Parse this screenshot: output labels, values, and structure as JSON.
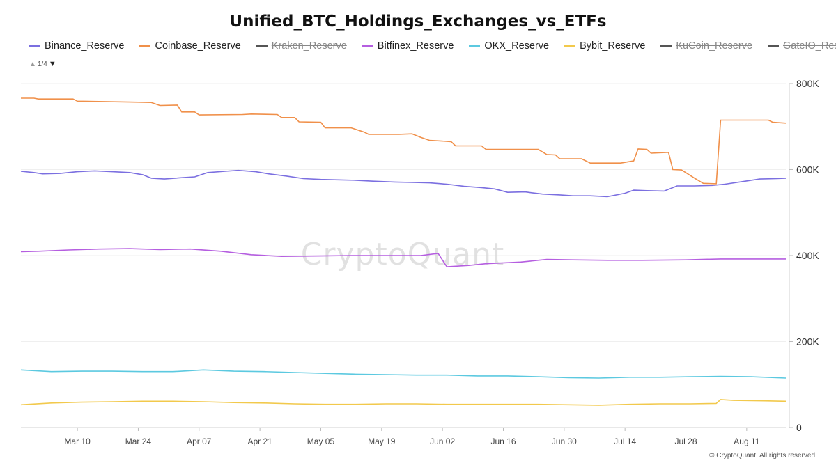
{
  "title": "Unified_BTC_Holdings_Exchanges_vs_ETFs",
  "legend_page": "1/4",
  "watermark": "CryptoQuant",
  "copyright": "© CryptoQuant. All rights reserved",
  "chart_data": {
    "type": "line",
    "title": "Unified_BTC_Holdings_Exchanges_vs_ETFs",
    "xlabel": "",
    "ylabel": "",
    "x_start": "2025-02-25",
    "x_end": "2025-08-20",
    "x_ticks": [
      {
        "date": "2025-03-10",
        "label": "Mar 10"
      },
      {
        "date": "2025-03-24",
        "label": "Mar 24"
      },
      {
        "date": "2025-04-07",
        "label": "Apr 07"
      },
      {
        "date": "2025-04-21",
        "label": "Apr 21"
      },
      {
        "date": "2025-05-05",
        "label": "May 05"
      },
      {
        "date": "2025-05-19",
        "label": "May 19"
      },
      {
        "date": "2025-06-02",
        "label": "Jun 02"
      },
      {
        "date": "2025-06-16",
        "label": "Jun 16"
      },
      {
        "date": "2025-06-30",
        "label": "Jun 30"
      },
      {
        "date": "2025-07-14",
        "label": "Jul 14"
      },
      {
        "date": "2025-07-28",
        "label": "Jul 28"
      },
      {
        "date": "2025-08-11",
        "label": "Aug 11"
      }
    ],
    "ylim": [
      0,
      800000
    ],
    "y_ticks": [
      {
        "value": 0,
        "label": "0"
      },
      {
        "value": 200000,
        "label": "200K"
      },
      {
        "value": 400000,
        "label": "400K"
      },
      {
        "value": 600000,
        "label": "600K"
      },
      {
        "value": 800000,
        "label": "800K"
      }
    ],
    "y_axis_side": "right",
    "grid": true,
    "legend_position": "top-left",
    "series": [
      {
        "name": "Binance_Reserve",
        "color": "#7b6fe0",
        "visible": true,
        "points": [
          [
            "2025-02-25",
            596000
          ],
          [
            "2025-02-28",
            593000
          ],
          [
            "2025-03-02",
            590000
          ],
          [
            "2025-03-06",
            591000
          ],
          [
            "2025-03-10",
            595000
          ],
          [
            "2025-03-14",
            597000
          ],
          [
            "2025-03-18",
            595000
          ],
          [
            "2025-03-22",
            593000
          ],
          [
            "2025-03-25",
            588000
          ],
          [
            "2025-03-27",
            580000
          ],
          [
            "2025-03-30",
            578000
          ],
          [
            "2025-04-03",
            581000
          ],
          [
            "2025-04-06",
            583000
          ],
          [
            "2025-04-09",
            593000
          ],
          [
            "2025-04-13",
            596000
          ],
          [
            "2025-04-16",
            598000
          ],
          [
            "2025-04-20",
            595000
          ],
          [
            "2025-04-23",
            590000
          ],
          [
            "2025-04-27",
            585000
          ],
          [
            "2025-05-01",
            579000
          ],
          [
            "2025-05-05",
            577000
          ],
          [
            "2025-05-09",
            576000
          ],
          [
            "2025-05-13",
            575000
          ],
          [
            "2025-05-17",
            573000
          ],
          [
            "2025-05-22",
            571000
          ],
          [
            "2025-05-26",
            570000
          ],
          [
            "2025-05-30",
            569000
          ],
          [
            "2025-06-03",
            566000
          ],
          [
            "2025-06-07",
            561000
          ],
          [
            "2025-06-11",
            558000
          ],
          [
            "2025-06-14",
            555000
          ],
          [
            "2025-06-17",
            547000
          ],
          [
            "2025-06-21",
            548000
          ],
          [
            "2025-06-25",
            543000
          ],
          [
            "2025-06-29",
            541000
          ],
          [
            "2025-07-02",
            539000
          ],
          [
            "2025-07-06",
            539000
          ],
          [
            "2025-07-10",
            537000
          ],
          [
            "2025-07-14",
            545000
          ],
          [
            "2025-07-16",
            552000
          ],
          [
            "2025-07-19",
            551000
          ],
          [
            "2025-07-23",
            550000
          ],
          [
            "2025-07-26",
            562000
          ],
          [
            "2025-07-30",
            562000
          ],
          [
            "2025-08-03",
            563000
          ],
          [
            "2025-08-06",
            566000
          ],
          [
            "2025-08-10",
            572000
          ],
          [
            "2025-08-14",
            578000
          ],
          [
            "2025-08-18",
            579000
          ],
          [
            "2025-08-20",
            580000
          ]
        ]
      },
      {
        "name": "Coinbase_Reserve",
        "color": "#f0904a",
        "visible": true,
        "points": [
          [
            "2025-02-25",
            766000
          ],
          [
            "2025-02-28",
            766000
          ],
          [
            "2025-03-01",
            764000
          ],
          [
            "2025-03-09",
            764000
          ],
          [
            "2025-03-10",
            759000
          ],
          [
            "2025-03-22",
            757000
          ],
          [
            "2025-03-27",
            756000
          ],
          [
            "2025-03-29",
            749000
          ],
          [
            "2025-04-02",
            750000
          ],
          [
            "2025-04-03",
            734000
          ],
          [
            "2025-04-06",
            734000
          ],
          [
            "2025-04-07",
            727000
          ],
          [
            "2025-04-17",
            728000
          ],
          [
            "2025-04-19",
            729000
          ],
          [
            "2025-04-25",
            728000
          ],
          [
            "2025-04-26",
            721000
          ],
          [
            "2025-04-29",
            721000
          ],
          [
            "2025-04-30",
            711000
          ],
          [
            "2025-05-05",
            710000
          ],
          [
            "2025-05-06",
            697000
          ],
          [
            "2025-05-12",
            697000
          ],
          [
            "2025-05-15",
            687000
          ],
          [
            "2025-05-16",
            682000
          ],
          [
            "2025-05-23",
            682000
          ],
          [
            "2025-05-26",
            683000
          ],
          [
            "2025-05-28",
            675000
          ],
          [
            "2025-05-30",
            668000
          ],
          [
            "2025-06-04",
            665000
          ],
          [
            "2025-06-05",
            655000
          ],
          [
            "2025-06-11",
            655000
          ],
          [
            "2025-06-12",
            647000
          ],
          [
            "2025-06-24",
            647000
          ],
          [
            "2025-06-26",
            635000
          ],
          [
            "2025-06-28",
            634000
          ],
          [
            "2025-06-29",
            625000
          ],
          [
            "2025-07-04",
            625000
          ],
          [
            "2025-07-06",
            615000
          ],
          [
            "2025-07-13",
            615000
          ],
          [
            "2025-07-16",
            620000
          ],
          [
            "2025-07-17",
            648000
          ],
          [
            "2025-07-19",
            647000
          ],
          [
            "2025-07-20",
            638000
          ],
          [
            "2025-07-24",
            640000
          ],
          [
            "2025-07-25",
            600000
          ],
          [
            "2025-07-27",
            599000
          ],
          [
            "2025-07-30",
            580000
          ],
          [
            "2025-08-01",
            568000
          ],
          [
            "2025-08-04",
            567000
          ],
          [
            "2025-08-05",
            715000
          ],
          [
            "2025-08-16",
            715000
          ],
          [
            "2025-08-17",
            710000
          ],
          [
            "2025-08-20",
            708000
          ]
        ]
      },
      {
        "name": "Kraken_Reserve",
        "color": "#555555",
        "visible": false,
        "points": []
      },
      {
        "name": "Bitfinex_Reserve",
        "color": "#b55ee0",
        "visible": true,
        "points": [
          [
            "2025-02-25",
            409000
          ],
          [
            "2025-03-01",
            410000
          ],
          [
            "2025-03-08",
            413000
          ],
          [
            "2025-03-15",
            415000
          ],
          [
            "2025-03-22",
            416000
          ],
          [
            "2025-03-29",
            414000
          ],
          [
            "2025-04-05",
            415000
          ],
          [
            "2025-04-12",
            410000
          ],
          [
            "2025-04-19",
            402000
          ],
          [
            "2025-04-26",
            398000
          ],
          [
            "2025-05-05",
            399000
          ],
          [
            "2025-05-12",
            400000
          ],
          [
            "2025-05-20",
            400000
          ],
          [
            "2025-05-28",
            400000
          ],
          [
            "2025-06-01",
            405000
          ],
          [
            "2025-06-03",
            374000
          ],
          [
            "2025-06-08",
            377000
          ],
          [
            "2025-06-12",
            381000
          ],
          [
            "2025-06-20",
            385000
          ],
          [
            "2025-06-26",
            391000
          ],
          [
            "2025-07-02",
            390000
          ],
          [
            "2025-07-10",
            389000
          ],
          [
            "2025-07-18",
            389000
          ],
          [
            "2025-07-28",
            390000
          ],
          [
            "2025-08-05",
            392000
          ],
          [
            "2025-08-12",
            392000
          ],
          [
            "2025-08-20",
            392000
          ]
        ]
      },
      {
        "name": "OKX_Reserve",
        "color": "#5cc9e0",
        "visible": true,
        "points": [
          [
            "2025-02-25",
            134000
          ],
          [
            "2025-03-04",
            130000
          ],
          [
            "2025-03-11",
            131000
          ],
          [
            "2025-03-18",
            131000
          ],
          [
            "2025-03-25",
            130000
          ],
          [
            "2025-04-01",
            130000
          ],
          [
            "2025-04-08",
            134000
          ],
          [
            "2025-04-15",
            131000
          ],
          [
            "2025-04-22",
            130000
          ],
          [
            "2025-04-29",
            128000
          ],
          [
            "2025-05-06",
            126000
          ],
          [
            "2025-05-13",
            124000
          ],
          [
            "2025-05-20",
            123000
          ],
          [
            "2025-05-27",
            122000
          ],
          [
            "2025-06-03",
            122000
          ],
          [
            "2025-06-10",
            120000
          ],
          [
            "2025-06-17",
            120000
          ],
          [
            "2025-06-24",
            118000
          ],
          [
            "2025-07-01",
            116000
          ],
          [
            "2025-07-08",
            115000
          ],
          [
            "2025-07-15",
            117000
          ],
          [
            "2025-07-22",
            117000
          ],
          [
            "2025-07-29",
            118000
          ],
          [
            "2025-08-05",
            119000
          ],
          [
            "2025-08-12",
            118000
          ],
          [
            "2025-08-20",
            115000
          ]
        ]
      },
      {
        "name": "Bybit_Reserve",
        "color": "#f2c94c",
        "visible": true,
        "points": [
          [
            "2025-02-25",
            53000
          ],
          [
            "2025-03-04",
            57000
          ],
          [
            "2025-03-11",
            59000
          ],
          [
            "2025-03-18",
            60000
          ],
          [
            "2025-03-25",
            61000
          ],
          [
            "2025-04-01",
            61000
          ],
          [
            "2025-04-08",
            60000
          ],
          [
            "2025-04-15",
            58000
          ],
          [
            "2025-04-22",
            57000
          ],
          [
            "2025-04-29",
            55000
          ],
          [
            "2025-05-06",
            54000
          ],
          [
            "2025-05-13",
            54000
          ],
          [
            "2025-05-20",
            55000
          ],
          [
            "2025-05-27",
            55000
          ],
          [
            "2025-06-03",
            54000
          ],
          [
            "2025-06-10",
            54000
          ],
          [
            "2025-06-17",
            54000
          ],
          [
            "2025-06-24",
            54000
          ],
          [
            "2025-07-01",
            53000
          ],
          [
            "2025-07-08",
            52000
          ],
          [
            "2025-07-15",
            54000
          ],
          [
            "2025-07-22",
            55000
          ],
          [
            "2025-07-29",
            55000
          ],
          [
            "2025-08-04",
            56000
          ],
          [
            "2025-08-05",
            65000
          ],
          [
            "2025-08-08",
            63000
          ],
          [
            "2025-08-15",
            62000
          ],
          [
            "2025-08-20",
            61000
          ]
        ]
      },
      {
        "name": "KuCoin_Reserve",
        "color": "#555555",
        "visible": false,
        "points": []
      },
      {
        "name": "GateIO_Reserve",
        "color": "#555555",
        "visible": false,
        "points": []
      }
    ]
  }
}
